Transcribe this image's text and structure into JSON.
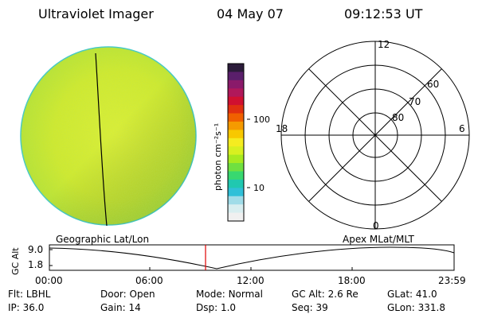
{
  "header": {
    "instrument": "Ultraviolet Imager",
    "date": "04 May 07",
    "time": "09:12:53 UT"
  },
  "colorbar": {
    "unit_label": "photon cm⁻²s⁻¹",
    "ticks": [
      "100",
      "10"
    ],
    "colors": [
      "#2b1b3a",
      "#5a1f6b",
      "#8a1a6a",
      "#b0185a",
      "#d01030",
      "#e03010",
      "#f06000",
      "#f59a00",
      "#f8c800",
      "#f5ec20",
      "#d8f020",
      "#a8ea20",
      "#70e040",
      "#38d870",
      "#20c8b0",
      "#30c0d8",
      "#a0dce8",
      "#d8eef0",
      "#f0f0f0"
    ]
  },
  "polar_grid": {
    "clock_labels": [
      "12",
      "18",
      "6",
      "0"
    ],
    "lat_labels": [
      "60",
      "70",
      "80"
    ]
  },
  "timeline": {
    "ylabel": "GC Alt",
    "ticks_y": [
      "9.0",
      "1.8"
    ],
    "left_caption": "Geographic Lat/Lon",
    "right_caption": "Apex MLat/MLT",
    "times": [
      "00:00",
      "06:00",
      "12:00",
      "18:00",
      "23:59"
    ],
    "marker_color": "#e00000"
  },
  "status": {
    "row1": [
      {
        "label": "Flt:",
        "value": "LBHL"
      },
      {
        "label": "Door:",
        "value": "Open"
      },
      {
        "label": "Mode:",
        "value": "Normal"
      },
      {
        "label": "GC Alt:",
        "value": "2.6 Re"
      },
      {
        "label": "GLat:",
        "value": "41.0"
      }
    ],
    "row2": [
      {
        "label": "IP:",
        "value": "36.0"
      },
      {
        "label": "Gain:",
        "value": "14"
      },
      {
        "label": "Dsp:",
        "value": "1.0"
      },
      {
        "label": "Seq:",
        "value": "39"
      },
      {
        "label": "GLon:",
        "value": "331.8"
      }
    ]
  },
  "colors": {
    "disk_base": "#d6ec2a",
    "disk_edge": "#30c8d0",
    "curve": "#000000"
  }
}
